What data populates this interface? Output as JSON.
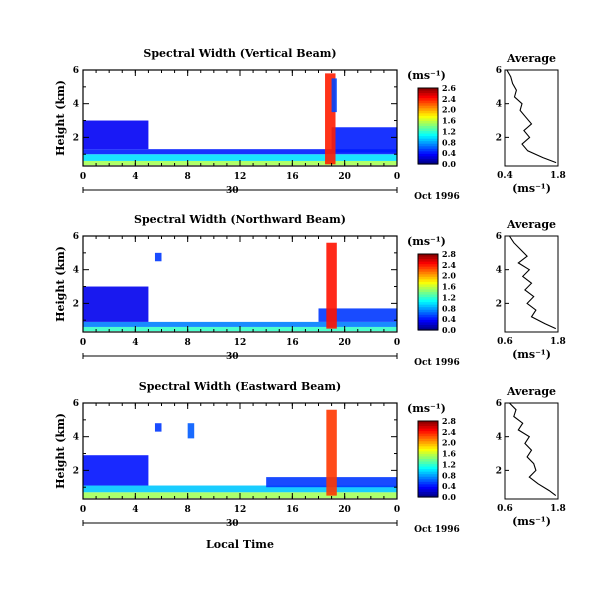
{
  "figure": {
    "x_axis_label": "Local Time",
    "date_label": "Oct 1996",
    "day_label": "30",
    "colorbar_units": "(ms⁻¹)",
    "avg_title": "Average",
    "avg_units": "(ms⁻¹)"
  },
  "chart_data": [
    {
      "type": "heatmap",
      "title": "Spectral Width (Vertical Beam)",
      "xlabel": "",
      "ylabel": "Height (km)",
      "xlim": [
        0,
        24
      ],
      "x_ticks": [
        "0",
        "4",
        "8",
        "12",
        "16",
        "20",
        "0"
      ],
      "ylim": [
        0.3,
        6
      ],
      "y_ticks": [
        "6",
        "4",
        "2"
      ],
      "colorbar": {
        "ticks": [
          "2.6",
          "2.4",
          "2.0",
          "1.6",
          "1.2",
          "0.8",
          "0.4",
          "0.0"
        ],
        "range": [
          0,
          2.6
        ]
      },
      "layers": [
        {
          "x": [
            0,
            24
          ],
          "y": [
            0.35,
            0.6
          ],
          "value": 1.4
        },
        {
          "x": [
            0,
            24
          ],
          "y": [
            0.6,
            1.0
          ],
          "value": 0.9
        },
        {
          "x": [
            0,
            24
          ],
          "y": [
            1.0,
            1.3
          ],
          "value": 0.4
        },
        {
          "x": [
            0,
            5
          ],
          "y": [
            1.3,
            3.0
          ],
          "value": 0.3
        },
        {
          "x": [
            19,
            24
          ],
          "y": [
            1.1,
            2.6
          ],
          "value": 0.4
        },
        {
          "x": [
            18.5,
            19.3
          ],
          "y": [
            0.4,
            5.8
          ],
          "value": 2.2
        },
        {
          "x": [
            19.0,
            19.4
          ],
          "y": [
            3.5,
            5.5
          ],
          "value": 0.5
        }
      ],
      "average_profile": {
        "title": "Average",
        "xlabel": "(ms⁻¹)",
        "xlim": [
          0.4,
          1.8
        ],
        "x_ticks": [
          "0.4",
          "1.8"
        ],
        "ylim": [
          0.3,
          6
        ],
        "y_ticks": [
          "6",
          "4",
          "2"
        ],
        "height": [
          6.0,
          5.6,
          5.2,
          4.8,
          4.4,
          4.0,
          3.6,
          3.2,
          2.8,
          2.4,
          2.0,
          1.6,
          1.2,
          0.8,
          0.5
        ],
        "width": [
          0.45,
          0.55,
          0.6,
          0.7,
          0.65,
          0.85,
          0.8,
          0.95,
          1.1,
          0.9,
          1.05,
          0.85,
          1.0,
          1.4,
          1.75
        ]
      }
    },
    {
      "type": "heatmap",
      "title": "Spectral Width (Northward Beam)",
      "xlabel": "",
      "ylabel": "Height (km)",
      "xlim": [
        0,
        24
      ],
      "x_ticks": [
        "0",
        "4",
        "8",
        "12",
        "16",
        "20",
        "0"
      ],
      "ylim": [
        0.3,
        6
      ],
      "y_ticks": [
        "6",
        "4",
        "2"
      ],
      "colorbar": {
        "ticks": [
          "2.8",
          "2.4",
          "2.0",
          "1.6",
          "1.2",
          "0.8",
          "0.4",
          "0.0"
        ],
        "range": [
          0,
          2.8
        ]
      },
      "layers": [
        {
          "x": [
            0,
            24
          ],
          "y": [
            0.35,
            0.6
          ],
          "value": 1.2
        },
        {
          "x": [
            0,
            24
          ],
          "y": [
            0.6,
            0.9
          ],
          "value": 0.7
        },
        {
          "x": [
            0,
            5
          ],
          "y": [
            0.9,
            3.0
          ],
          "value": 0.3
        },
        {
          "x": [
            18,
            24
          ],
          "y": [
            0.9,
            1.7
          ],
          "value": 0.5
        },
        {
          "x": [
            18.6,
            19.4
          ],
          "y": [
            0.5,
            5.6
          ],
          "value": 2.4
        },
        {
          "x": [
            5.5,
            6.0
          ],
          "y": [
            4.5,
            5.0
          ],
          "value": 0.5
        }
      ],
      "average_profile": {
        "title": "Average",
        "xlabel": "(ms⁻¹)",
        "xlim": [
          0.6,
          1.8
        ],
        "x_ticks": [
          "0.6",
          "1.8"
        ],
        "ylim": [
          0.3,
          6
        ],
        "y_ticks": [
          "6",
          "4",
          "2"
        ],
        "height": [
          6.0,
          5.6,
          5.2,
          4.8,
          4.4,
          4.0,
          3.6,
          3.2,
          2.8,
          2.4,
          2.0,
          1.6,
          1.2,
          0.8,
          0.5
        ],
        "width": [
          0.7,
          0.8,
          0.95,
          1.1,
          0.9,
          1.15,
          1.0,
          1.2,
          1.05,
          1.25,
          1.1,
          1.3,
          1.2,
          1.5,
          1.75
        ]
      }
    },
    {
      "type": "heatmap",
      "title": "Spectral Width (Eastward Beam)",
      "xlabel": "Local Time",
      "ylabel": "Height (km)",
      "xlim": [
        0,
        24
      ],
      "x_ticks": [
        "0",
        "4",
        "8",
        "12",
        "16",
        "20",
        "0"
      ],
      "ylim": [
        0.3,
        6
      ],
      "y_ticks": [
        "6",
        "4",
        "2"
      ],
      "colorbar": {
        "ticks": [
          "2.8",
          "2.4",
          "2.0",
          "1.6",
          "1.2",
          "0.8",
          "0.4",
          "0.0"
        ],
        "range": [
          0,
          2.8
        ]
      },
      "layers": [
        {
          "x": [
            0,
            24
          ],
          "y": [
            0.35,
            0.7
          ],
          "value": 1.5
        },
        {
          "x": [
            0,
            24
          ],
          "y": [
            0.7,
            1.1
          ],
          "value": 0.9
        },
        {
          "x": [
            0,
            5
          ],
          "y": [
            1.1,
            2.9
          ],
          "value": 0.4
        },
        {
          "x": [
            14,
            24
          ],
          "y": [
            1.0,
            1.6
          ],
          "value": 0.5
        },
        {
          "x": [
            18.6,
            19.4
          ],
          "y": [
            0.5,
            5.6
          ],
          "value": 2.3
        },
        {
          "x": [
            8.0,
            8.5
          ],
          "y": [
            3.9,
            4.8
          ],
          "value": 0.6
        },
        {
          "x": [
            5.5,
            6.0
          ],
          "y": [
            4.3,
            4.8
          ],
          "value": 0.5
        }
      ],
      "average_profile": {
        "title": "Average",
        "xlabel": "(ms⁻¹)",
        "xlim": [
          0.6,
          1.8
        ],
        "x_ticks": [
          "0.6",
          "1.8"
        ],
        "ylim": [
          0.3,
          6
        ],
        "y_ticks": [
          "6",
          "4",
          "2"
        ],
        "height": [
          6.0,
          5.6,
          5.2,
          4.8,
          4.4,
          4.0,
          3.6,
          3.2,
          2.8,
          2.4,
          2.0,
          1.6,
          1.2,
          0.8,
          0.5
        ],
        "width": [
          0.7,
          0.85,
          0.8,
          1.0,
          0.9,
          1.15,
          1.05,
          1.2,
          1.1,
          1.25,
          1.3,
          1.15,
          1.35,
          1.6,
          1.75
        ]
      }
    }
  ]
}
